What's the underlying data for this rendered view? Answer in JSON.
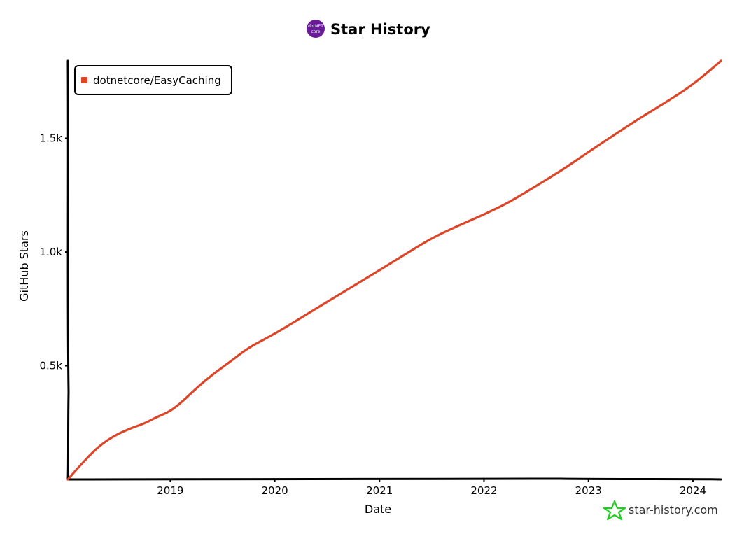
{
  "page": {
    "watermark": "star-history.com",
    "logo_text_top": "dotNET",
    "logo_text_bottom": "core"
  },
  "colors": {
    "series": "#dd4528",
    "logo": "#6a1b9a",
    "watermark_icon": "#1fcf1f"
  },
  "chart_data": {
    "type": "line",
    "title": "Star History",
    "xlabel": "Date",
    "ylabel": "GitHub Stars",
    "x_ticks": [
      "2019",
      "2020",
      "2021",
      "2022",
      "2023",
      "2024"
    ],
    "y_ticks": [
      "0.5k",
      "1.0k",
      "1.5k"
    ],
    "y_tick_values": [
      500,
      1000,
      1500
    ],
    "x_range": [
      "2018-01-08",
      "2024-04-08"
    ],
    "ylim": [
      0,
      1840
    ],
    "legend_position": "top-left",
    "series": [
      {
        "name": "dotnetcore/EasyCaching",
        "color": "#dd4528",
        "points": [
          [
            "2018-01-08",
            0
          ],
          [
            "2018-02-15",
            55
          ],
          [
            "2018-04-20",
            140
          ],
          [
            "2018-06-15",
            190
          ],
          [
            "2018-08-15",
            225
          ],
          [
            "2018-10-01",
            245
          ],
          [
            "2018-11-15",
            275
          ],
          [
            "2019-01-01",
            300
          ],
          [
            "2019-02-10",
            340
          ],
          [
            "2019-04-01",
            400
          ],
          [
            "2019-06-01",
            465
          ],
          [
            "2019-08-01",
            520
          ],
          [
            "2019-10-01",
            580
          ],
          [
            "2020-01-01",
            640
          ],
          [
            "2020-04-01",
            710
          ],
          [
            "2020-07-01",
            780
          ],
          [
            "2020-10-01",
            850
          ],
          [
            "2021-01-01",
            920
          ],
          [
            "2021-04-01",
            990
          ],
          [
            "2021-07-01",
            1060
          ],
          [
            "2021-10-01",
            1115
          ],
          [
            "2022-01-01",
            1165
          ],
          [
            "2022-04-01",
            1220
          ],
          [
            "2022-07-01",
            1290
          ],
          [
            "2022-10-01",
            1360
          ],
          [
            "2023-01-01",
            1440
          ],
          [
            "2023-04-01",
            1515
          ],
          [
            "2023-07-01",
            1590
          ],
          [
            "2023-10-01",
            1660
          ],
          [
            "2024-01-01",
            1735
          ],
          [
            "2024-04-08",
            1840
          ]
        ]
      }
    ]
  }
}
